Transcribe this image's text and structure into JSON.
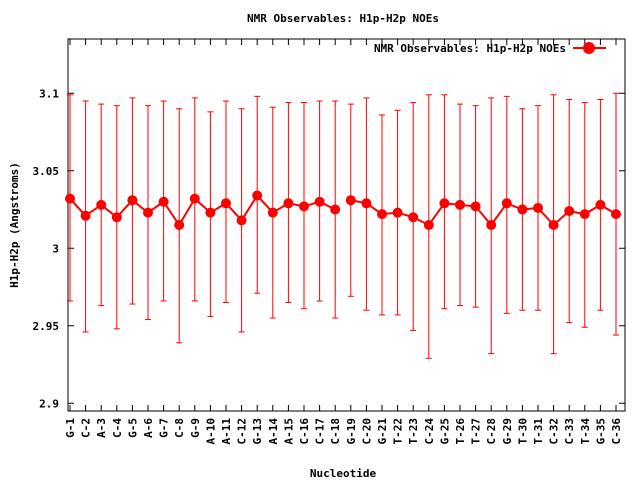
{
  "chart_data": {
    "type": "line",
    "title": "NMR Observables: H1p-H2p NOEs",
    "xlabel": "Nucleotide",
    "ylabel": "H1p-H2p (Angstroms)",
    "ylim": [
      2.895,
      3.135
    ],
    "yticks": [
      2.9,
      2.95,
      3,
      3.05,
      3.1
    ],
    "ytick_labels": [
      "2.9",
      "2.95",
      "3",
      "3.05",
      "3.1"
    ],
    "grid": false,
    "legend_position": "top-right",
    "categories": [
      "G-1",
      "C-2",
      "A-3",
      "C-4",
      "G-5",
      "A-6",
      "G-7",
      "C-8",
      "G-9",
      "A-10",
      "A-11",
      "C-12",
      "G-13",
      "A-14",
      "A-15",
      "C-16",
      "C-17",
      "C-18",
      "G-19",
      "C-20",
      "G-21",
      "T-22",
      "T-23",
      "C-24",
      "G-25",
      "T-26",
      "T-27",
      "C-28",
      "G-29",
      "T-30",
      "T-31",
      "C-32",
      "C-33",
      "T-34",
      "G-35",
      "C-36"
    ],
    "series": [
      {
        "name": "NMR Observables: H1p-H2p NOEs",
        "color": "#ff0000",
        "segments": [
          [
            0,
            17
          ],
          [
            18,
            35
          ]
        ],
        "values": [
          3.032,
          3.021,
          3.028,
          3.02,
          3.031,
          3.023,
          3.03,
          3.015,
          3.032,
          3.023,
          3.029,
          3.018,
          3.034,
          3.023,
          3.029,
          3.027,
          3.03,
          3.025,
          3.031,
          3.029,
          3.022,
          3.023,
          3.02,
          3.015,
          3.029,
          3.028,
          3.027,
          3.015,
          3.029,
          3.025,
          3.026,
          3.015,
          3.024,
          3.022,
          3.028,
          3.022
        ],
        "err_low": [
          2.966,
          2.946,
          2.963,
          2.948,
          2.964,
          2.954,
          2.966,
          2.939,
          2.966,
          2.956,
          2.965,
          2.946,
          2.971,
          2.955,
          2.965,
          2.961,
          2.966,
          2.955,
          2.969,
          2.96,
          2.957,
          2.957,
          2.947,
          2.929,
          2.961,
          2.963,
          2.962,
          2.932,
          2.958,
          2.96,
          2.96,
          2.932,
          2.952,
          2.949,
          2.96,
          2.944
        ],
        "err_high": [
          3.099,
          3.095,
          3.093,
          3.092,
          3.097,
          3.092,
          3.095,
          3.09,
          3.097,
          3.088,
          3.095,
          3.09,
          3.098,
          3.091,
          3.094,
          3.094,
          3.095,
          3.095,
          3.093,
          3.097,
          3.086,
          3.089,
          3.094,
          3.099,
          3.099,
          3.093,
          3.092,
          3.097,
          3.098,
          3.09,
          3.092,
          3.099,
          3.096,
          3.094,
          3.096,
          3.1
        ]
      }
    ]
  }
}
